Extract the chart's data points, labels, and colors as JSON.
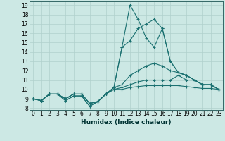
{
  "xlabel": "Humidex (Indice chaleur)",
  "bg_color": "#cce8e4",
  "grid_color": "#b0d0cc",
  "line_color": "#1a7070",
  "xlim": [
    -0.5,
    23.5
  ],
  "ylim": [
    7.8,
    19.4
  ],
  "xticks": [
    0,
    1,
    2,
    3,
    4,
    5,
    6,
    7,
    8,
    9,
    10,
    11,
    12,
    13,
    14,
    15,
    16,
    17,
    18,
    19,
    20,
    21,
    22,
    23
  ],
  "yticks": [
    8,
    9,
    10,
    11,
    12,
    13,
    14,
    15,
    16,
    17,
    18,
    19
  ],
  "lines": [
    [
      9.0,
      8.8,
      9.5,
      9.5,
      9.0,
      9.5,
      9.5,
      8.5,
      8.7,
      9.5,
      10.0,
      10.0,
      10.2,
      10.3,
      10.4,
      10.4,
      10.4,
      10.4,
      10.4,
      10.3,
      10.2,
      10.1,
      10.1,
      10.0
    ],
    [
      9.0,
      8.8,
      9.5,
      9.5,
      9.0,
      9.5,
      9.5,
      8.5,
      8.7,
      9.5,
      10.0,
      10.2,
      10.5,
      10.8,
      11.0,
      11.0,
      11.0,
      11.0,
      11.5,
      11.0,
      11.0,
      10.5,
      10.5,
      10.0
    ],
    [
      9.0,
      8.8,
      9.5,
      9.5,
      9.0,
      9.5,
      9.5,
      8.5,
      8.7,
      9.5,
      10.2,
      10.5,
      11.5,
      12.0,
      12.5,
      12.8,
      12.5,
      12.0,
      11.8,
      11.5,
      11.0,
      10.5,
      10.5,
      10.0
    ],
    [
      9.0,
      8.8,
      9.5,
      9.5,
      8.8,
      9.3,
      9.3,
      8.2,
      8.7,
      9.5,
      10.2,
      14.5,
      15.2,
      16.5,
      17.0,
      17.5,
      16.5,
      13.0,
      11.8,
      11.5,
      11.0,
      10.5,
      10.5,
      10.0
    ],
    [
      9.0,
      8.8,
      9.5,
      9.5,
      8.8,
      9.3,
      9.3,
      8.2,
      8.7,
      9.5,
      10.2,
      14.5,
      19.0,
      17.5,
      15.5,
      14.5,
      16.5,
      13.0,
      11.8,
      11.5,
      11.0,
      10.5,
      10.5,
      10.0
    ]
  ],
  "xlabel_fontsize": 6.5,
  "tick_fontsize": 5.5
}
